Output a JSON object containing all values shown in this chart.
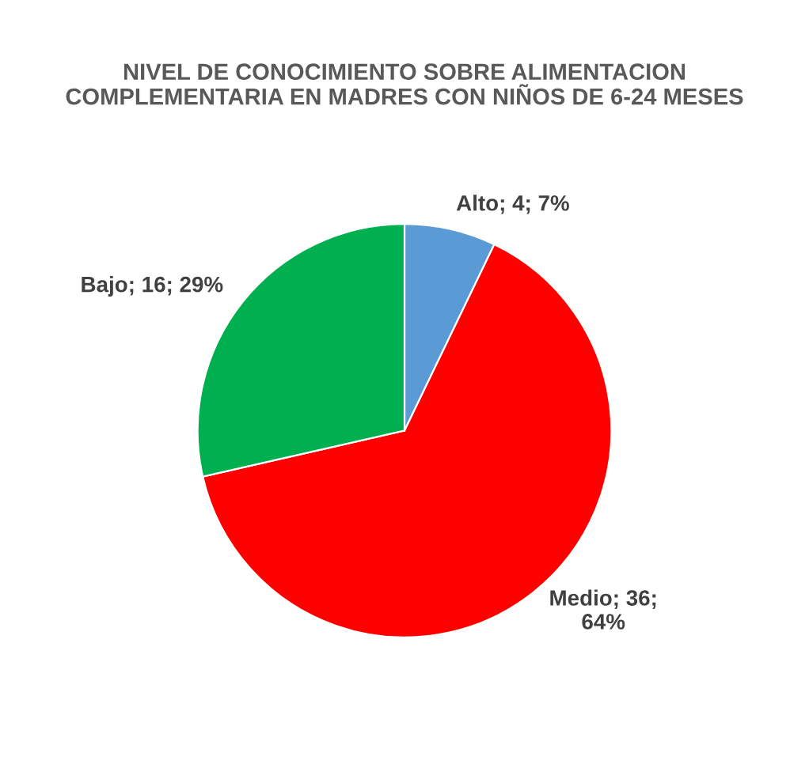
{
  "chart_data": {
    "type": "pie",
    "title": "NIVEL DE CONOCIMIENTO SOBRE ALIMENTACION\nCOMPLEMENTARIA EN MADRES CON NIÑOS DE 6-24 MESES",
    "categories": [
      "Alto",
      "Medio",
      "Bajo"
    ],
    "values": [
      4,
      36,
      16
    ],
    "colors": [
      "#5b9bd5",
      "#ff0000",
      "#00b050"
    ],
    "value_labels": [
      "4; 7%",
      "36;\n64%",
      "16; 29%"
    ]
  }
}
